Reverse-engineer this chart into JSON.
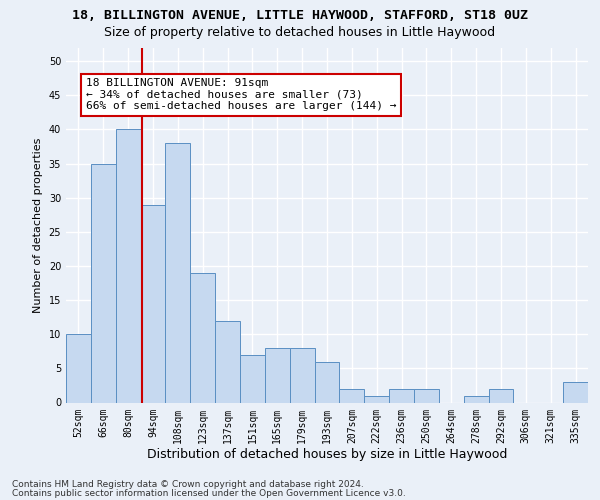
{
  "title": "18, BILLINGTON AVENUE, LITTLE HAYWOOD, STAFFORD, ST18 0UZ",
  "subtitle": "Size of property relative to detached houses in Little Haywood",
  "xlabel": "Distribution of detached houses by size in Little Haywood",
  "ylabel": "Number of detached properties",
  "categories": [
    "52sqm",
    "66sqm",
    "80sqm",
    "94sqm",
    "108sqm",
    "123sqm",
    "137sqm",
    "151sqm",
    "165sqm",
    "179sqm",
    "193sqm",
    "207sqm",
    "222sqm",
    "236sqm",
    "250sqm",
    "264sqm",
    "278sqm",
    "292sqm",
    "306sqm",
    "321sqm",
    "335sqm"
  ],
  "values": [
    10,
    35,
    40,
    29,
    38,
    19,
    12,
    7,
    8,
    8,
    6,
    2,
    1,
    2,
    2,
    0,
    1,
    2,
    0,
    0,
    3
  ],
  "bar_color": "#c6d9f0",
  "bar_edge_color": "#5a8fc3",
  "vline_x_index": 2.57,
  "vline_color": "#cc0000",
  "annotation_line1": "18 BILLINGTON AVENUE: 91sqm",
  "annotation_line2": "← 34% of detached houses are smaller (73)",
  "annotation_line3": "66% of semi-detached houses are larger (144) →",
  "annotation_box_color": "#ffffff",
  "annotation_box_edge": "#cc0000",
  "ylim": [
    0,
    52
  ],
  "yticks": [
    0,
    5,
    10,
    15,
    20,
    25,
    30,
    35,
    40,
    45,
    50
  ],
  "footer_line1": "Contains HM Land Registry data © Crown copyright and database right 2024.",
  "footer_line2": "Contains public sector information licensed under the Open Government Licence v3.0.",
  "bg_color": "#eaf0f8",
  "grid_color": "#ffffff",
  "title_fontsize": 9.5,
  "subtitle_fontsize": 9,
  "ylabel_fontsize": 8,
  "xlabel_fontsize": 9,
  "tick_fontsize": 7,
  "annotation_fontsize": 8,
  "footer_fontsize": 6.5
}
